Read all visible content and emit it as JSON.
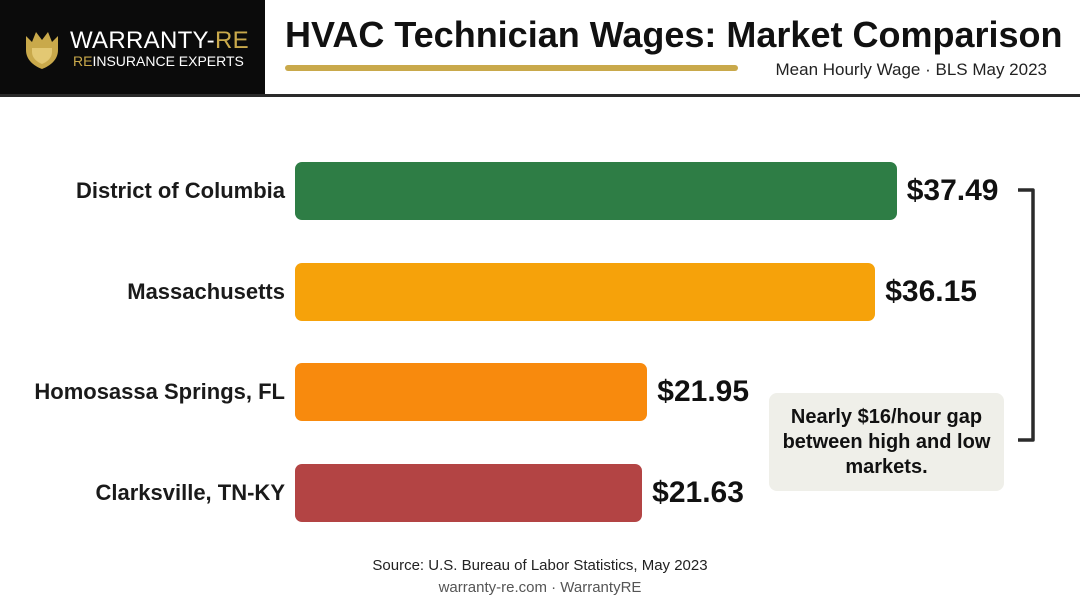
{
  "brand": {
    "name_white": "WARRANTY-",
    "name_gold": "RE",
    "tagline_gold": "RE",
    "tagline_white": "INSURANCE EXPERTS"
  },
  "title": "HVAC Technician Wages: Market Comparison",
  "subtitle": "Mean Hourly Wage · BLS May 2023",
  "chart_data": {
    "type": "bar",
    "orientation": "horizontal",
    "categories": [
      "District of Columbia",
      "Massachusetts",
      "Homosassa Springs, FL",
      "Clarksville, TN-KY"
    ],
    "values": [
      37.49,
      36.15,
      21.95,
      21.63
    ],
    "value_labels": [
      "$37.49",
      "$36.15",
      "$21.95",
      "$21.63"
    ],
    "colors": [
      "#2e7d45",
      "#f6a20a",
      "#f88a0d",
      "#b34444"
    ],
    "annotation": "Nearly $16/hour gap between high and low markets.",
    "grid": false,
    "legend": "none"
  },
  "source": "Source: U.S. Bureau of Labor Statistics, May 2023",
  "footer": "warranty-re.com · WarrantyRE"
}
